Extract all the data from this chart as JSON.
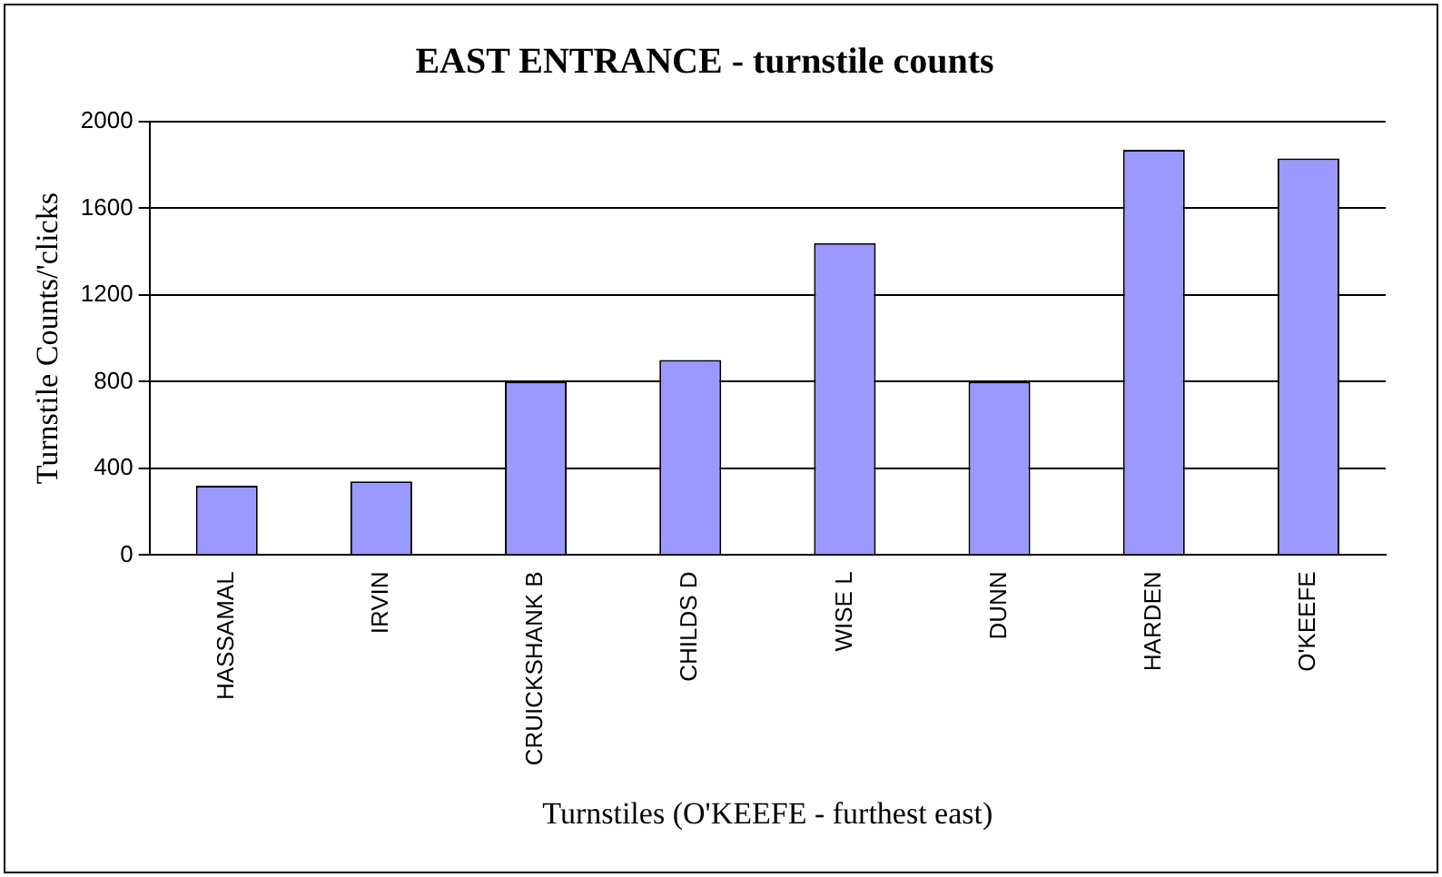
{
  "chart_data": {
    "type": "bar",
    "title": "EAST ENTRANCE - turnstile counts",
    "xlabel": "Turnstiles (O'KEEFE - furthest east)",
    "ylabel": "Turnstile Counts/'clicks",
    "categories": [
      "HASSAMAL",
      "IRVIN",
      "CRUICKSHANK B",
      "CHILDS D",
      "WISE L",
      "DUNN",
      "HARDEN",
      "O'KEEFE"
    ],
    "values": [
      320,
      340,
      800,
      900,
      1440,
      800,
      1870,
      1830
    ],
    "color": "#9999ff",
    "ylim": [
      0,
      2000
    ],
    "yticks": [
      0,
      400,
      800,
      1200,
      1600,
      2000
    ],
    "grid": "y",
    "legend": false
  }
}
